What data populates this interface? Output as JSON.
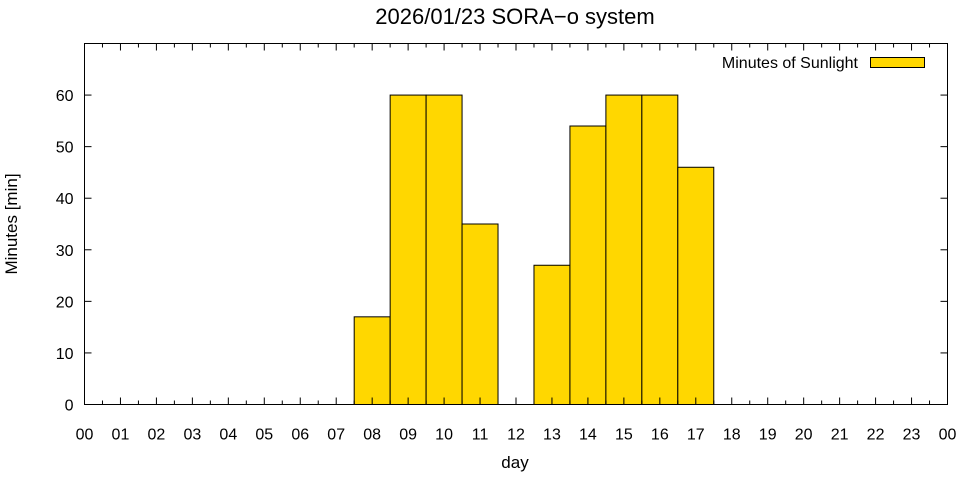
{
  "chart_data": {
    "type": "bar",
    "title": "2026/01/23 SORA−o system",
    "xlabel": "day",
    "ylabel": "Minutes [min]",
    "ylim": [
      0,
      70
    ],
    "xlim": [
      0,
      24
    ],
    "yticks": [
      0,
      10,
      20,
      30,
      40,
      50,
      60
    ],
    "xtick_labels": [
      "00",
      "01",
      "02",
      "03",
      "04",
      "05",
      "06",
      "07",
      "08",
      "09",
      "10",
      "11",
      "12",
      "13",
      "14",
      "15",
      "16",
      "17",
      "18",
      "19",
      "20",
      "21",
      "22",
      "23",
      "00"
    ],
    "grid": false,
    "legend_position": "top-right",
    "series": [
      {
        "name": "Minutes of Sunlight",
        "color": "#ffd700",
        "x": [
          8,
          9,
          10,
          11,
          13,
          14,
          15,
          16,
          17
        ],
        "values": [
          17,
          60,
          60,
          35,
          27,
          54,
          60,
          60,
          46
        ]
      }
    ]
  }
}
